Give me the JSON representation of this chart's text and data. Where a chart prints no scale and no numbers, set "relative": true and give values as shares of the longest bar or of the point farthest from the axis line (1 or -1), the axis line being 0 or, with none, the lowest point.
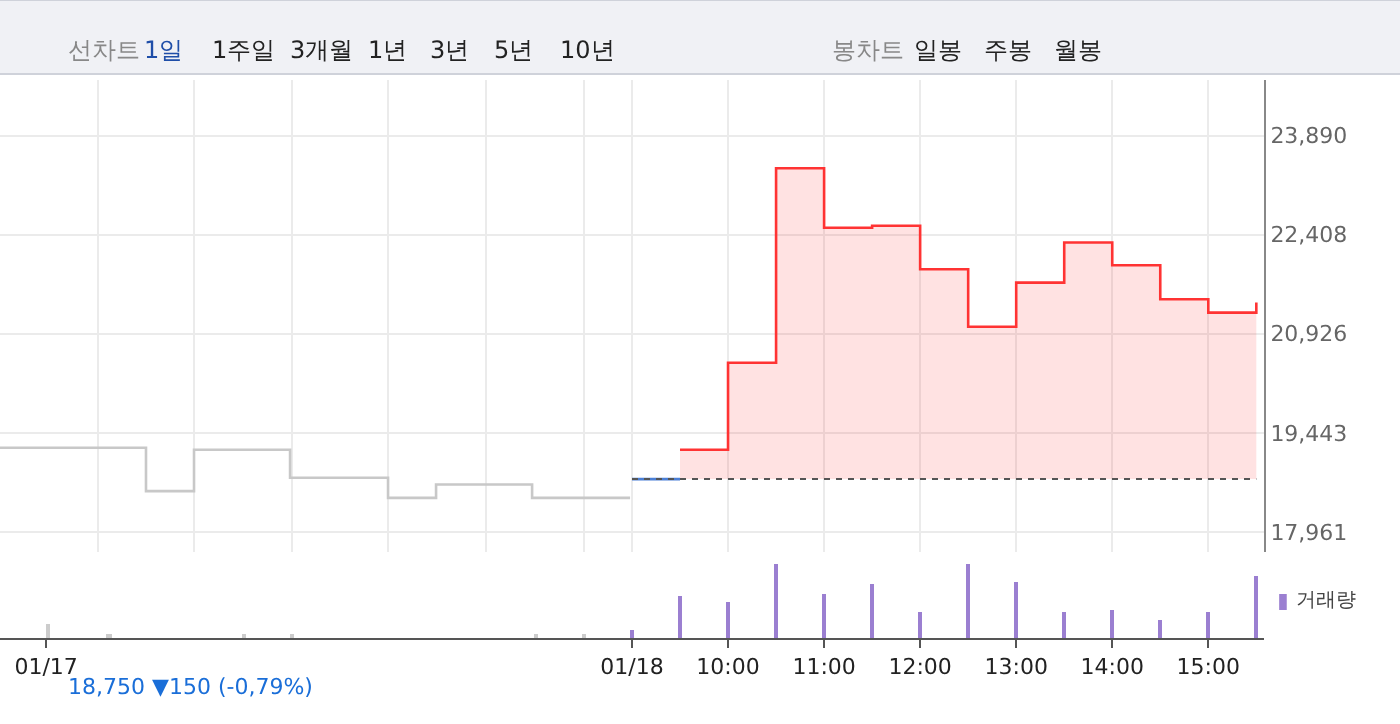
{
  "chart_data": [
    {
      "type": "step",
      "annotations": [
        "선차트",
        "1일",
        "1주일",
        "3개월",
        "1년",
        "3년",
        "5년",
        "10년",
        "봉차트",
        "일봉",
        "주봉",
        "월봉"
      ],
      "series": [
        {
          "color": "#c8c8c8",
          "x": [
            2.42,
            3.94,
            4.44,
            5.44,
            6.46,
            6.96,
            7.96,
            8.98
          ],
          "values": [
            19220,
            18570,
            19190,
            18770,
            18470,
            18670,
            18470,
            18470
          ]
        },
        {
          "color": "#4a7fd6",
          "x": [
            9.0,
            9.5
          ],
          "values": [
            18750,
            18750
          ]
        },
        {
          "type": "area",
          "color": "#ff3333",
          "x": [
            9.5,
            10,
            10,
            10.5,
            10.5,
            11,
            11,
            11.5,
            11.5,
            12,
            12,
            12.5,
            12.5,
            13,
            13,
            13.5,
            13.5,
            14,
            14,
            14.5,
            14.5,
            15,
            15,
            15.5,
            15.5
          ],
          "values": [
            19190,
            19190,
            20490,
            20490,
            23400,
            23400,
            22510,
            22510,
            22540,
            22540,
            21890,
            21890,
            21030,
            21030,
            21690,
            21690,
            22290,
            22290,
            21950,
            21950,
            21440,
            21440,
            21240,
            21240,
            21390
          ]
        }
      ],
      "xlim": [
        2.42,
        15.58
      ],
      "xticks": [
        {
          "value": 3.44,
          "label": null
        },
        {
          "value": 4.44,
          "label": null
        },
        {
          "value": 5.46,
          "label": null
        },
        {
          "value": 6.46,
          "label": null
        },
        {
          "value": 7.48,
          "label": null
        },
        {
          "value": 8.5,
          "label": null
        },
        {
          "value": 9,
          "label": null
        },
        {
          "value": 10,
          "label": null
        },
        {
          "value": 11,
          "label": null
        },
        {
          "value": 12,
          "label": null
        },
        {
          "value": 13,
          "label": null
        },
        {
          "value": 14,
          "label": null
        },
        {
          "value": 15,
          "label": null
        }
      ],
      "ylim": [
        17660,
        24720
      ],
      "yticks": [
        {
          "value": 17961,
          "label": "17,961"
        },
        {
          "value": 19443,
          "label": "19,443"
        },
        {
          "value": 20926,
          "label": "20,926"
        },
        {
          "value": 22408,
          "label": "22,408"
        },
        {
          "value": 23890,
          "label": "23,890"
        }
      ],
      "ref_lines": [
        {
          "axis": "y",
          "value": 18750,
          "color": "#555555",
          "line_style": "dotted"
        }
      ],
      "grid": true,
      "tick_labels": "y",
      "legend": false
    },
    {
      "type": "bar",
      "relative": true,
      "legend": "top right",
      "tick_labels": "x",
      "annotations": [
        "18,750 ▼150 (-0,79%)"
      ],
      "series": [
        {
          "name": "거래량",
          "color": "#9b7fd1",
          "x": [
            2.92,
            3.56,
            4.96,
            5.46,
            8.0,
            8.5,
            9.0,
            9.5,
            10,
            10.5,
            11,
            11.5,
            12,
            12.5,
            13,
            13.5,
            14,
            14.5,
            15,
            15.5
          ],
          "colors": [
            "#cccccc",
            "#cccccc",
            "#cccccc",
            "#cccccc",
            "#cccccc",
            "#cccccc",
            "#9b7fd1",
            "#9b7fd1",
            "#9b7fd1",
            "#9b7fd1",
            "#9b7fd1",
            "#9b7fd1",
            "#9b7fd1",
            "#9b7fd1",
            "#9b7fd1",
            "#9b7fd1",
            "#9b7fd1",
            "#9b7fd1",
            "#9b7fd1",
            "#9b7fd1"
          ],
          "values": [
            0.2,
            0.03,
            0.03,
            0.03,
            0.03,
            0.03,
            0.11,
            0.56,
            0.48,
            1.0,
            0.59,
            0.73,
            0.36,
            1.0,
            0.75,
            0.34,
            0.39,
            0.23,
            0.36,
            0.84
          ]
        }
      ],
      "xlim": [
        2.42,
        15.58
      ],
      "xticks": [
        {
          "value": 2.9,
          "label": "01/17"
        },
        {
          "value": 9,
          "label": "01/18"
        },
        {
          "value": 10,
          "label": "10:00"
        },
        {
          "value": 11,
          "label": "11:00"
        },
        {
          "value": 12,
          "label": "12:00"
        },
        {
          "value": 13,
          "label": "13:00"
        },
        {
          "value": 14,
          "label": "14:00"
        },
        {
          "value": 15,
          "label": "15:00"
        }
      ]
    }
  ]
}
